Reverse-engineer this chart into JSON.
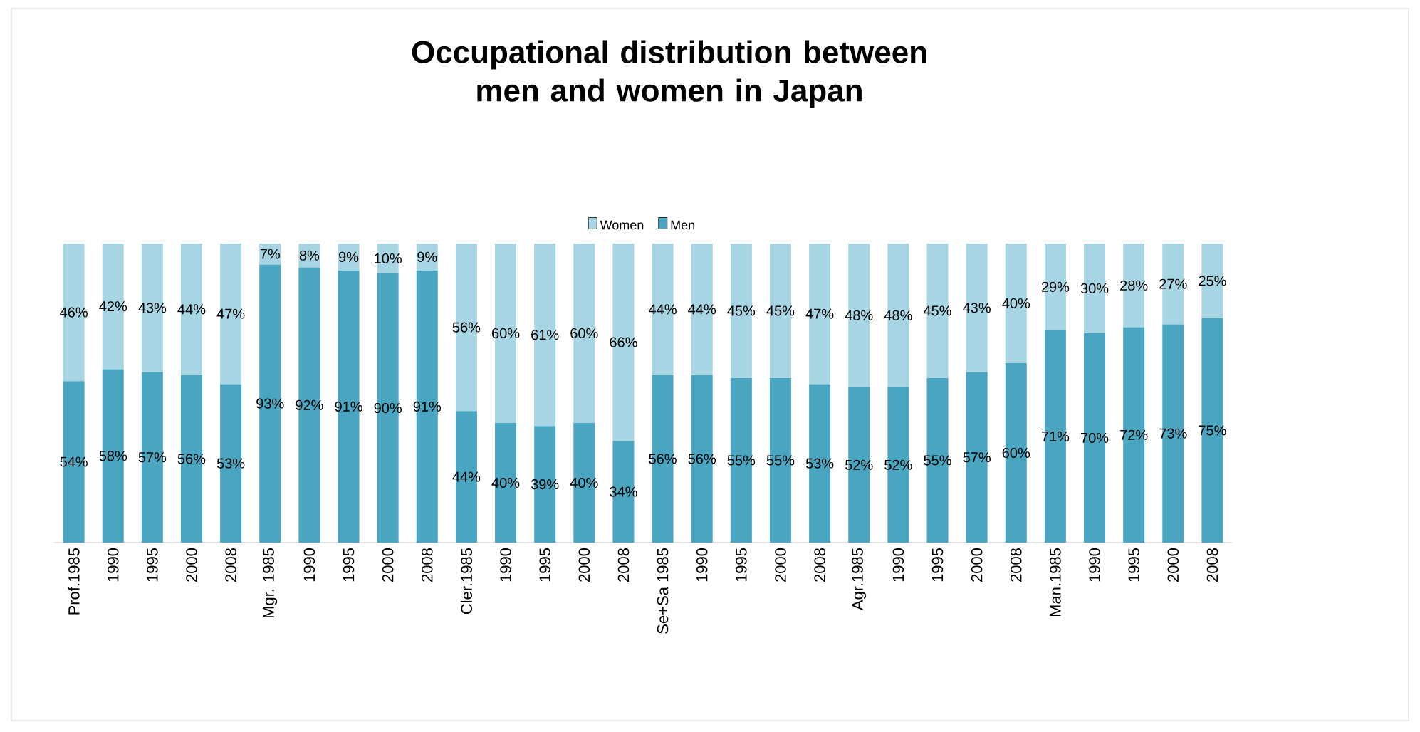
{
  "chart_data": {
    "type": "bar",
    "stacked": true,
    "title": "Occupational distribution between men and women in Japan",
    "categories": [
      "Prof.1985",
      "1990",
      "1995",
      "2000",
      "2008",
      "Mgr. 1985",
      "1990",
      "1995",
      "2000",
      "2008",
      "Cler.1985",
      "1990",
      "1995",
      "2000",
      "2008",
      "Se+Sa 1985",
      "1990",
      "1995",
      "2000",
      "2008",
      "Agr.1985",
      "1990",
      "1995",
      "2000",
      "2008",
      "Man.1985",
      "1990",
      "1995",
      "2000",
      "2008"
    ],
    "series": [
      {
        "name": "Men",
        "color": "#4aa6c0",
        "values": [
          54,
          58,
          57,
          56,
          53,
          93,
          92,
          91,
          90,
          91,
          44,
          40,
          39,
          40,
          34,
          56,
          56,
          55,
          55,
          53,
          52,
          52,
          55,
          57,
          60,
          71,
          70,
          72,
          73,
          75
        ],
        "value_labels": [
          "54%",
          "58%",
          "57%",
          "56%",
          "53%",
          "93%",
          "92%",
          "91%",
          "90%",
          "91%",
          "44%",
          "40%",
          "39%",
          "40%",
          "34%",
          "56%",
          "56%",
          "55%",
          "55%",
          "53%",
          "52%",
          "52%",
          "55%",
          "57%",
          "60%",
          "71%",
          "70%",
          "72%",
          "73%",
          "75%"
        ]
      },
      {
        "name": "Women",
        "color": "#a8d5e3",
        "values": [
          46,
          42,
          43,
          44,
          47,
          7,
          8,
          9,
          10,
          9,
          56,
          60,
          61,
          60,
          66,
          44,
          44,
          45,
          45,
          47,
          48,
          48,
          45,
          43,
          40,
          29,
          30,
          28,
          27,
          25
        ],
        "value_labels": [
          "46%",
          "42%",
          "43%",
          "44%",
          "47%",
          "7%",
          "8%",
          "9%",
          "10%",
          "9%",
          "56%",
          "60%",
          "61%",
          "60%",
          "66%",
          "44%",
          "44%",
          "45%",
          "45%",
          "47%",
          "48%",
          "48%",
          "45%",
          "43%",
          "40%",
          "29%",
          "30%",
          "28%",
          "27%",
          "25%"
        ]
      }
    ],
    "legend": "top"
  }
}
